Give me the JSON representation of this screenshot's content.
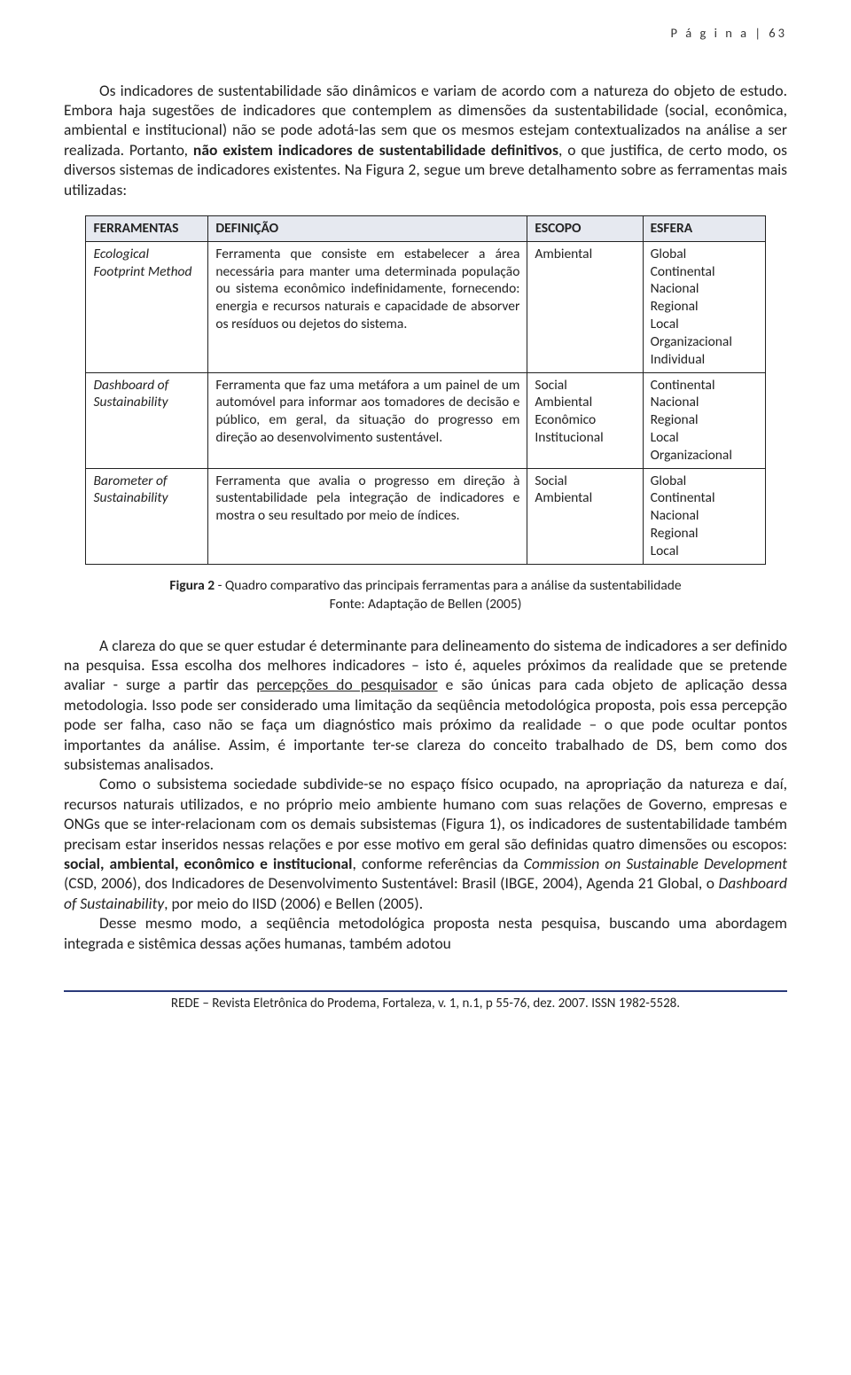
{
  "header": {
    "page_label": "P á g i n a  | 63"
  },
  "intro": {
    "p1": "Os indicadores de sustentabilidade são dinâmicos e variam de acordo com a natureza do objeto de estudo. Embora haja sugestões de indicadores que contemplem as dimensões da sustentabilidade (social, econômica, ambiental e institucional) não se pode adotá-las sem que os mesmos estejam contextualizados na análise a ser realizada. Portanto, ",
    "p1_bold": "não existem indicadores de sustentabilidade definitivos",
    "p1_tail": ", o que justifica, de certo modo, os diversos sistemas de indicadores existentes. Na Figura 2, segue um breve detalhamento sobre as ferramentas mais utilizadas:"
  },
  "table": {
    "headers": [
      "FERRAMENTAS",
      "DEFINIÇÃO",
      "ESCOPO",
      "ESFERA"
    ],
    "rows": [
      {
        "tool": "Ecological Footprint Method",
        "definition": "Ferramenta que consiste em estabelecer a área necessária para manter uma determinada população ou sistema econômico indefinidamente, fornecendo: energia e recursos naturais e capacidade de absorver os resíduos ou dejetos do sistema.",
        "scope": "Ambiental",
        "sphere": "Global\nContinental\nNacional\nRegional\nLocal\nOrganizacional\nIndividual"
      },
      {
        "tool": "Dashboard of Sustainability",
        "definition": "Ferramenta que faz uma metáfora a um painel de um automóvel para informar aos tomadores de decisão e público, em geral, da situação do progresso em direção ao desenvolvimento sustentável.",
        "scope": "Social\nAmbiental\nEconômico\nInstitucional",
        "sphere": "Continental\nNacional\nRegional\nLocal\nOrganizacional"
      },
      {
        "tool": "Barometer of Sustainability",
        "definition": "Ferramenta que avalia o progresso em direção à sustentabilidade pela integração de indicadores e mostra o seu resultado por meio de índices.",
        "scope": "Social\nAmbiental",
        "sphere": "Global\nContinental\nNacional\nRegional\nLocal"
      }
    ]
  },
  "caption": {
    "line1_bold": "Figura 2",
    "line1_rest": " - Quadro comparativo das principais ferramentas para a análise da sustentabilidade",
    "line2": "Fonte: Adaptação de Bellen (2005)"
  },
  "body": {
    "p2_a": "A clareza do que se quer estudar é determinante para delineamento do sistema de indicadores a ser definido na pesquisa. Essa escolha dos melhores indicadores – isto é, aqueles próximos da realidade que se pretende avaliar - surge a partir das ",
    "p2_u": "percepções do pesquisador",
    "p2_b": " e são únicas para cada objeto de aplicação dessa metodologia. Isso pode ser considerado uma limitação da seqüência metodológica proposta, pois essa percepção pode ser falha, caso não se faça um diagnóstico mais próximo da realidade – o que pode ocultar pontos importantes da análise. Assim, é importante ter-se clareza do conceito trabalhado de DS, bem como dos subsistemas analisados.",
    "p3_a": "Como o subsistema sociedade subdivide-se no espaço físico ocupado, na apropriação da natureza e daí, recursos naturais utilizados, e no próprio meio ambiente humano com suas relações de Governo, empresas e ONGs que se inter-relacionam com os demais subsistemas (Figura 1), os indicadores de sustentabilidade também precisam estar inseridos nessas relações e por esse motivo em geral são definidas quatro dimensões ou escopos: ",
    "p3_bold": "social, ambiental, econômico e institucional",
    "p3_b": ", conforme referências da ",
    "p3_i1": "Commission on Sustainable Development",
    "p3_c": " (CSD, 2006), dos Indicadores de Desenvolvimento Sustentável: Brasil (IBGE, 2004), Agenda 21 Global, o ",
    "p3_i2": "Dashboard of Sustainability",
    "p3_d": ", por meio do IISD (2006) e Bellen (2005).",
    "p4": "Desse mesmo modo, a seqüência metodológica proposta nesta pesquisa, buscando uma abordagem integrada e sistêmica dessas ações humanas, também adotou"
  },
  "footer": {
    "text": "REDE – Revista Eletrônica do Prodema, Fortaleza, v. 1, n.1, p 55-76, dez. 2007. ISSN 1982-5528."
  },
  "colors": {
    "text": "#222222",
    "header_bg": "#e6e9f0",
    "rule": "#2a3a7a"
  }
}
